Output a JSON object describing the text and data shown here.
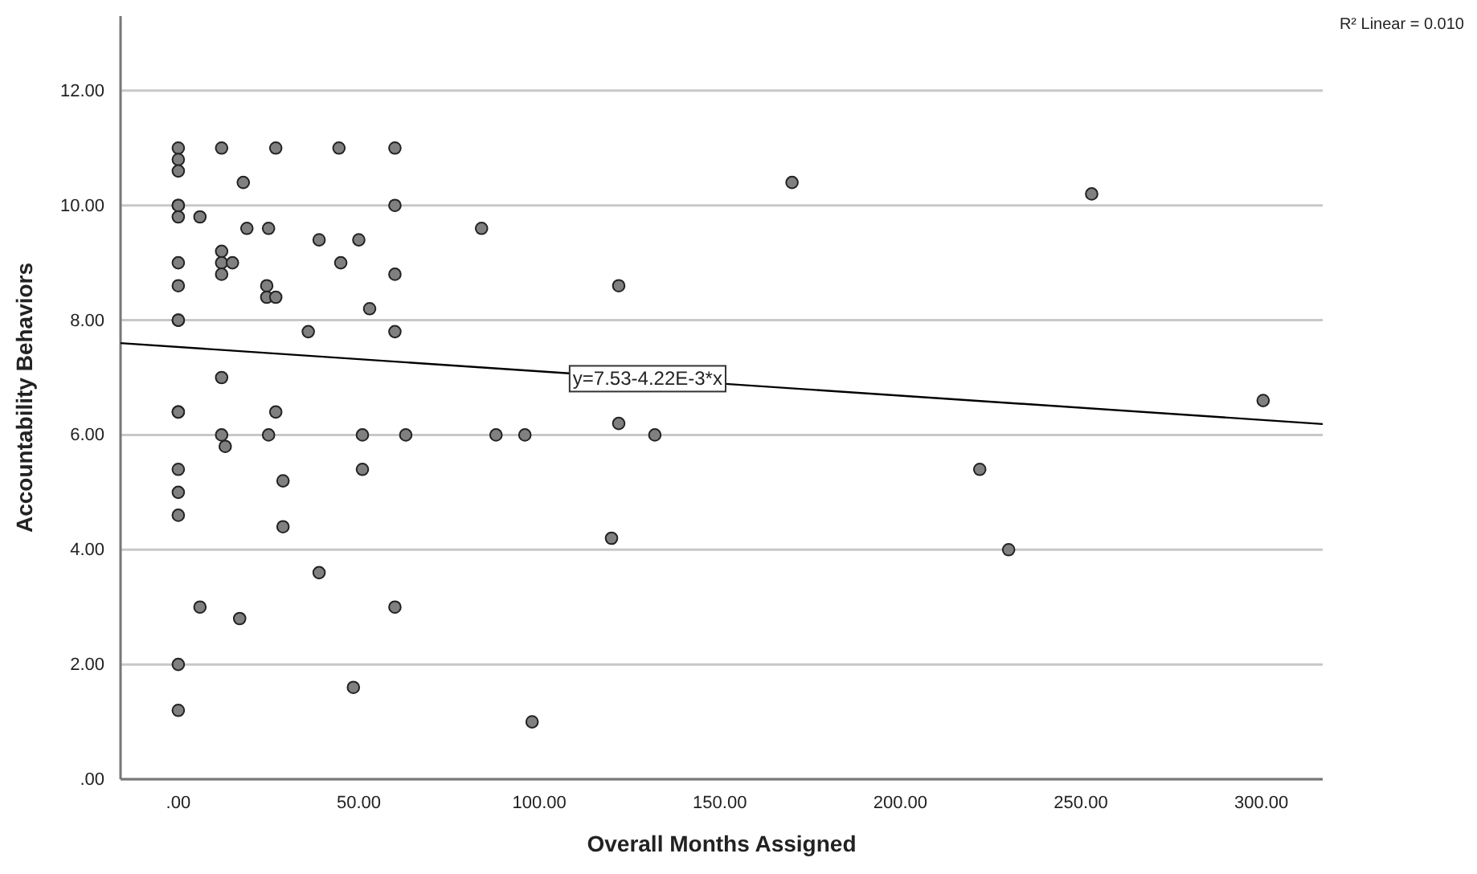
{
  "chart_data": {
    "type": "scatter",
    "xlabel": "Overall Months Assigned",
    "ylabel": "Accountability Behaviors",
    "xlim": [
      -16,
      317
    ],
    "ylim": [
      0,
      13.3
    ],
    "xticks": [
      {
        "value": 0,
        "label": ".00"
      },
      {
        "value": 50,
        "label": "50.00"
      },
      {
        "value": 100,
        "label": "100.00"
      },
      {
        "value": 150,
        "label": "150.00"
      },
      {
        "value": 200,
        "label": "200.00"
      },
      {
        "value": 250,
        "label": "250.00"
      },
      {
        "value": 300,
        "label": "300.00"
      }
    ],
    "yticks": [
      {
        "value": 0,
        "label": ".00"
      },
      {
        "value": 2,
        "label": "2.00"
      },
      {
        "value": 4,
        "label": "4.00"
      },
      {
        "value": 6,
        "label": "6.00"
      },
      {
        "value": 8,
        "label": "8.00"
      },
      {
        "value": 10,
        "label": "10.00"
      },
      {
        "value": 12,
        "label": "12.00"
      }
    ],
    "grid": "y",
    "series": [
      {
        "marker": "circle",
        "color": "#808080",
        "x": [
          0,
          0,
          0,
          0,
          0,
          0,
          0,
          0,
          0,
          0,
          0,
          0,
          0,
          0,
          0,
          0,
          0,
          6,
          6,
          12,
          12,
          12,
          12,
          12,
          12,
          13,
          15,
          18,
          19,
          17,
          24.5,
          24.5,
          25,
          25,
          27,
          27,
          27,
          29,
          29,
          36,
          39,
          39,
          44.5,
          45,
          48.5,
          50,
          51,
          51,
          53,
          60,
          60,
          60,
          60,
          60,
          63,
          84,
          88,
          96,
          98,
          120,
          122,
          122,
          132,
          170,
          253,
          222,
          230,
          300.5
        ],
        "values": [
          11,
          10.8,
          10.6,
          10,
          10,
          9.8,
          9,
          8.6,
          8,
          8,
          6.4,
          6.4,
          5.4,
          5,
          4.6,
          2,
          1.2,
          9.8,
          3,
          11,
          9.2,
          9,
          8.8,
          7,
          6,
          5.8,
          9,
          10.4,
          9.6,
          2.8,
          8.6,
          8.4,
          9.6,
          6,
          11,
          8.4,
          6.4,
          5.2,
          4.4,
          7.8,
          9.4,
          3.6,
          11,
          9,
          1.6,
          9.4,
          6,
          5.4,
          8.2,
          11,
          10,
          8.8,
          7.8,
          3,
          6,
          9.6,
          6,
          6,
          1,
          4.2,
          8.6,
          6.2,
          6,
          10.4,
          10.2,
          5.4,
          4,
          6.6
        ]
      },
      {
        "type": "line",
        "color": "#000000",
        "x": [
          -16,
          317
        ],
        "values": [
          7.6,
          6.19
        ]
      }
    ],
    "annotations": [
      {
        "text": "y=7.53-4.22E-3*x",
        "x": 130,
        "y": 6.98
      },
      "R² Linear = 0.010"
    ]
  }
}
